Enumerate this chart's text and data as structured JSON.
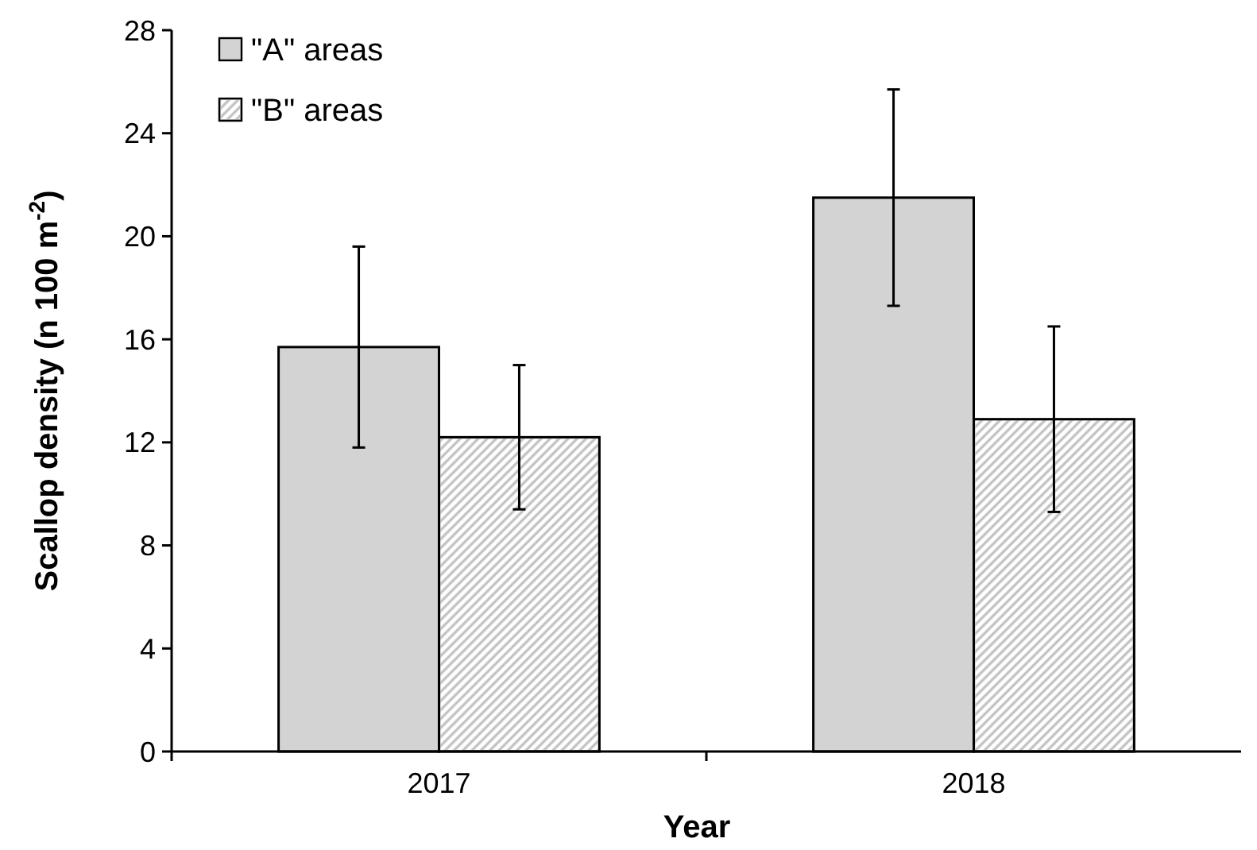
{
  "chart_data": {
    "type": "bar",
    "xlabel": "Year",
    "ylabel": "Scallop density (n 100 m$^{-2}$)",
    "categories": [
      "2017",
      "2018"
    ],
    "series": [
      {
        "name": "\"A\" areas",
        "color": "#d3d3d3",
        "values": [
          15.7,
          21.5
        ],
        "errors": [
          3.9,
          4.2
        ]
      },
      {
        "name": "\"B\" areas",
        "color": "#c0c0c0",
        "values": [
          12.2,
          12.9
        ],
        "errors": [
          2.8,
          3.6
        ]
      }
    ],
    "ylim": [
      0,
      28
    ],
    "yticks": [
      0,
      4,
      8,
      12,
      16,
      20,
      24,
      28
    ],
    "grid": false,
    "legend": "top left"
  }
}
